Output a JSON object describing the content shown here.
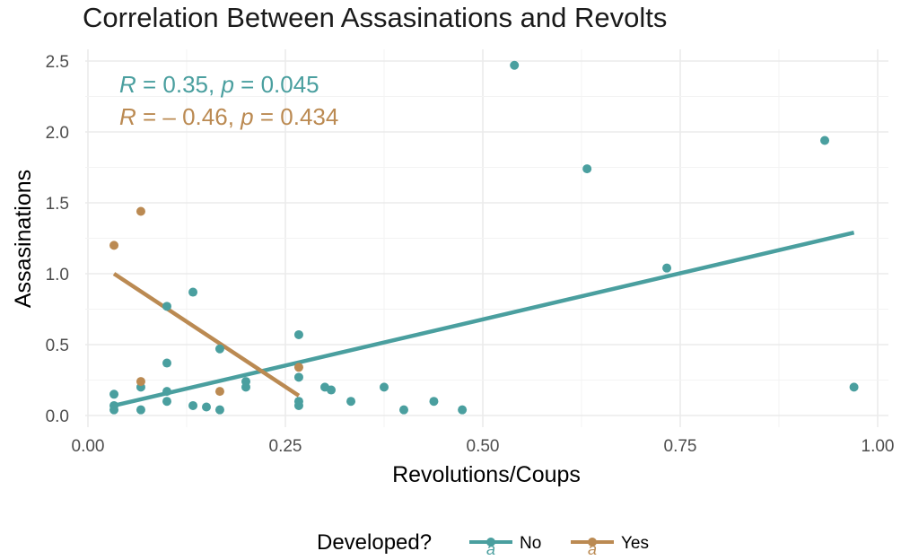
{
  "chart_data": {
    "type": "scatter",
    "title": "Correlation Between Assasinations and Revolts",
    "xlabel": "Revolutions/Coups",
    "ylabel": "Assasinations",
    "xlim": [
      0,
      1.0
    ],
    "ylim": [
      0,
      2.5
    ],
    "xticks": [
      "0.00",
      "0.25",
      "0.50",
      "0.75",
      "1.00"
    ],
    "yticks": [
      "0.0",
      "0.5",
      "1.0",
      "1.5",
      "2.0",
      "2.5"
    ],
    "grid": true,
    "legend_position": "bottom",
    "legend_title": "Developed?",
    "series": [
      {
        "name": "No",
        "color": "#4a9f9f",
        "stat": {
          "R": "0.35",
          "p": "0.045"
        },
        "points": [
          [
            0.033,
            0.15
          ],
          [
            0.033,
            0.07
          ],
          [
            0.033,
            0.04
          ],
          [
            0.067,
            0.2
          ],
          [
            0.067,
            0.04
          ],
          [
            0.1,
            0.77
          ],
          [
            0.1,
            0.37
          ],
          [
            0.1,
            0.17
          ],
          [
            0.1,
            0.1
          ],
          [
            0.133,
            0.87
          ],
          [
            0.133,
            0.07
          ],
          [
            0.15,
            0.06
          ],
          [
            0.167,
            0.47
          ],
          [
            0.167,
            0.04
          ],
          [
            0.2,
            0.24
          ],
          [
            0.2,
            0.2
          ],
          [
            0.267,
            0.57
          ],
          [
            0.267,
            0.27
          ],
          [
            0.267,
            0.1
          ],
          [
            0.267,
            0.07
          ],
          [
            0.3,
            0.2
          ],
          [
            0.308,
            0.18
          ],
          [
            0.333,
            0.1
          ],
          [
            0.375,
            0.2
          ],
          [
            0.4,
            0.04
          ],
          [
            0.438,
            0.1
          ],
          [
            0.474,
            0.04
          ],
          [
            0.54,
            2.47
          ],
          [
            0.632,
            1.74
          ],
          [
            0.733,
            1.04
          ],
          [
            0.933,
            1.94
          ],
          [
            0.97,
            0.2
          ]
        ],
        "fit": [
          [
            0.033,
            0.07
          ],
          [
            0.97,
            1.29
          ]
        ]
      },
      {
        "name": "Yes",
        "color": "#bb8a52",
        "stat": {
          "R": "– 0.46",
          "p": "0.434"
        },
        "points": [
          [
            0.033,
            1.2
          ],
          [
            0.067,
            1.44
          ],
          [
            0.067,
            0.24
          ],
          [
            0.167,
            0.17
          ],
          [
            0.267,
            0.34
          ]
        ],
        "fit": [
          [
            0.033,
            1.0
          ],
          [
            0.267,
            0.14
          ]
        ]
      }
    ]
  }
}
